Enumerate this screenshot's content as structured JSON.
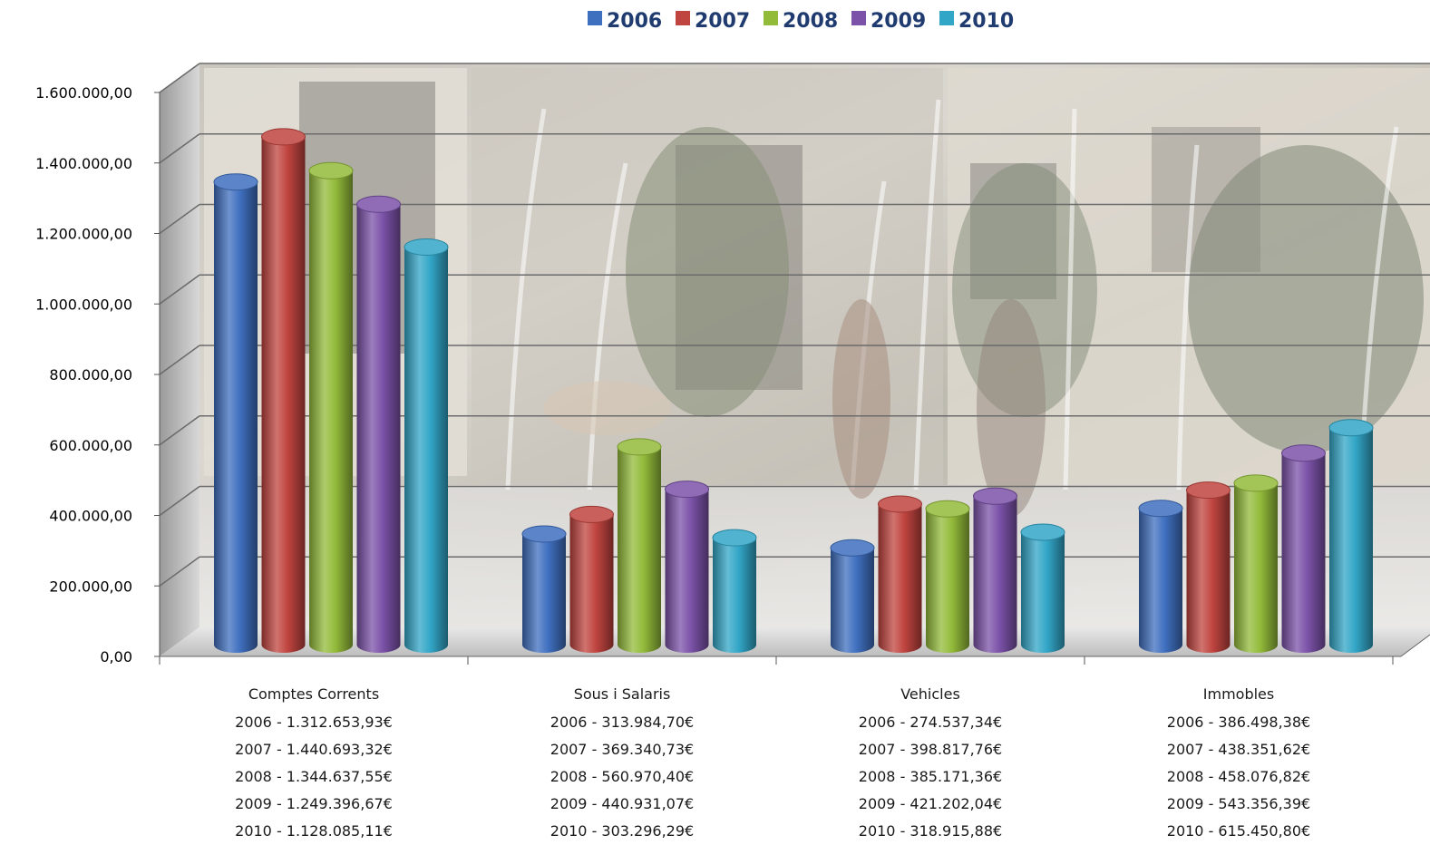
{
  "chart_data": {
    "type": "bar",
    "style": "3d-cylinder",
    "categories": [
      "Comptes Corrents",
      "Sous i Salaris",
      "Vehicles",
      "Immobles"
    ],
    "series": [
      {
        "name": "2006",
        "color": "#3f6fbf",
        "values": [
          1312653.93,
          313984.7,
          274537.34,
          386498.38
        ]
      },
      {
        "name": "2007",
        "color": "#c0443f",
        "values": [
          1440693.32,
          369340.73,
          398817.76,
          438351.62
        ]
      },
      {
        "name": "2008",
        "color": "#93bb3a",
        "values": [
          1344637.55,
          560970.4,
          385171.36,
          458076.82
        ]
      },
      {
        "name": "2009",
        "color": "#7b52a8",
        "values": [
          1249396.67,
          440931.07,
          421202.04,
          543356.39
        ]
      },
      {
        "name": "2010",
        "color": "#32a6c7",
        "values": [
          1128085.11,
          303296.29,
          318915.88,
          615450.8
        ]
      }
    ],
    "category_value_labels": [
      [
        "2006 - 1.312.653,93€",
        "2007 - 1.440.693,32€",
        "2008 - 1.344.637,55€",
        "2009 - 1.249.396,67€",
        "2010 - 1.128.085,11€"
      ],
      [
        "2006 - 313.984,70€",
        "2007 - 369.340,73€",
        "2008 - 560.970,40€",
        "2009 - 440.931,07€",
        "2010 - 303.296,29€"
      ],
      [
        "2006 - 274.537,34€",
        "2007 - 398.817,76€",
        "2008 - 385.171,36€",
        "2009 - 421.202,04€",
        "2010 - 318.915,88€"
      ],
      [
        "2006 - 386.498,38€",
        "2007 - 438.351,62€",
        "2008 - 458.076,82€",
        "2009 - 543.356,39€",
        "2010 - 615.450,80€"
      ]
    ],
    "y_ticks": [
      0,
      200000,
      400000,
      600000,
      800000,
      1000000,
      1200000,
      1400000,
      1600000
    ],
    "y_tick_labels": [
      "0,00",
      "200.000,00",
      "400.000,00",
      "600.000,00",
      "800.000,00",
      "1.000.000,00",
      "1.200.000,00",
      "1.400.000,00",
      "1.600.000,00"
    ],
    "ylim": [
      0,
      1600000
    ],
    "legend_position": "top",
    "grid": true,
    "background": "photo"
  }
}
